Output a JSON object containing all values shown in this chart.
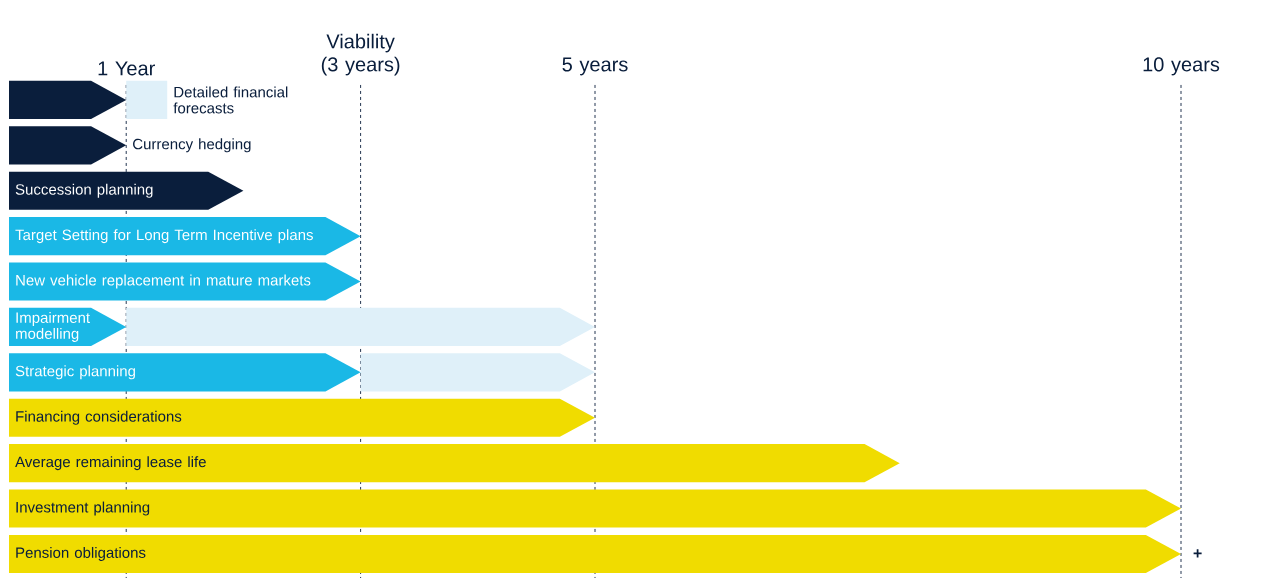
{
  "chart_data": {
    "type": "bar",
    "orientation": "horizontal",
    "stacked": true,
    "categories": [
      "Detailed financial forecasts",
      "Currency hedging",
      "Succession planning",
      "Target Setting for Long Term Incentive plans",
      "New vehicle replacement in mature markets",
      "Impairment modelling",
      "Strategic planning",
      "Financing considerations",
      "Average remaining lease life",
      "Investment planning",
      "Pension obligations"
    ],
    "series": [
      {
        "color": "#0a1e3c",
        "values": [
          1,
          1,
          2,
          null,
          null,
          null,
          null,
          null,
          null,
          null,
          null
        ]
      },
      {
        "color": "#1ab8e6",
        "values": [
          null,
          null,
          null,
          3,
          3,
          1,
          3,
          null,
          null,
          null,
          null
        ]
      },
      {
        "color": "#f0dc00",
        "values": [
          null,
          null,
          null,
          null,
          null,
          null,
          null,
          5,
          7.6,
          10,
          10
        ]
      },
      {
        "color": "#dff0f9",
        "values": [
          0.35,
          null,
          null,
          null,
          null,
          4,
          2,
          null,
          null,
          null,
          null
        ]
      }
    ],
    "xlim": [
      0,
      10
    ],
    "xticks": [
      {
        "value": 1,
        "label": "1 Year"
      },
      {
        "value": 3,
        "label": "Viability (3 years)"
      },
      {
        "value": 5,
        "label": "5 years"
      },
      {
        "value": 10,
        "label": "10 years"
      }
    ],
    "grid": "x",
    "annotations": [
      "+"
    ]
  }
}
